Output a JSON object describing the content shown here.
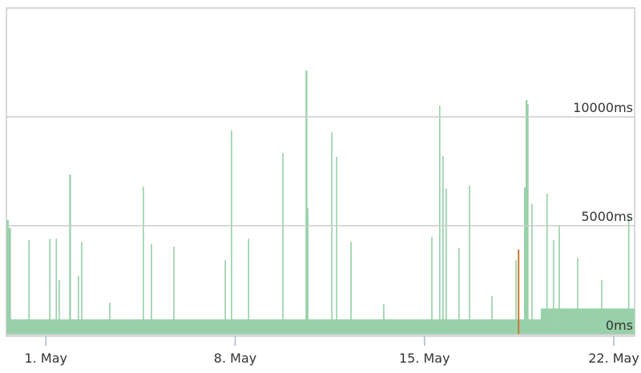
{
  "chart_data": {
    "type": "column-area",
    "color": "#98d1a9",
    "x": [
      -0.45,
      -0.38,
      -0.3,
      0.35,
      0.39,
      1.12,
      1.16,
      1.36,
      1.4,
      1.47,
      1.51,
      1.86,
      1.92,
      2.18,
      2.22,
      2.3,
      2.34,
      3.34,
      3.38,
      4.58,
      4.62,
      4.88,
      4.92,
      5.71,
      5.75,
      7.61,
      7.65,
      7.84,
      7.88,
      8.47,
      8.51,
      9.74,
      9.78,
      10.6,
      10.66,
      10.7,
      11.55,
      11.59,
      11.73,
      11.77,
      12.26,
      12.3,
      13.47,
      13.51,
      15.25,
      15.29,
      15.54,
      15.58,
      15.66,
      15.7,
      15.78,
      15.82,
      16.25,
      16.29,
      16.64,
      16.68,
      17.47,
      17.51,
      18.36,
      18.4,
      18.68,
      18.74,
      18.8,
      18.84,
      18.95,
      18.99,
      19.3,
      19.51,
      19.55,
      19.75,
      19.79,
      19.96,
      20,
      20.64,
      20.68,
      21.53,
      21.57,
      22.53,
      22.57
    ],
    "values": [
      5250,
      4900,
      700,
      4340,
      700,
      4400,
      700,
      4400,
      700,
      2500,
      700,
      7350,
      700,
      2700,
      700,
      4260,
      700,
      1470,
      700,
      6800,
      700,
      4150,
      700,
      4040,
      700,
      3420,
      700,
      9380,
      700,
      4400,
      700,
      8350,
      700,
      12130,
      5800,
      700,
      9300,
      700,
      8160,
      700,
      4260,
      700,
      1400,
      700,
      4490,
      700,
      10510,
      700,
      8200,
      700,
      6700,
      700,
      3970,
      700,
      6840,
      700,
      1760,
      700,
      3420,
      700,
      6760,
      10770,
      10590,
      700,
      6000,
      700,
      1200,
      6470,
      1200,
      4340,
      1200,
      5000,
      1200,
      3530,
      1200,
      2500,
      1200,
      5440,
      1200
    ],
    "highlight": {
      "x": 18.48,
      "value": 3900,
      "color": "#c8772f"
    },
    "xlim": [
      -0.46,
      22.77
    ],
    "xticks": [
      {
        "value": 1,
        "label": "1. May"
      },
      {
        "value": 8,
        "label": "8. May"
      },
      {
        "value": 15,
        "label": "15. May"
      },
      {
        "value": 22,
        "label": "22. May"
      }
    ],
    "ylim": [
      0,
      15000
    ],
    "yticks": [
      {
        "value": 0,
        "label": "0ms"
      },
      {
        "value": 5000,
        "label": "5000ms"
      },
      {
        "value": 10000,
        "label": "10000ms"
      }
    ],
    "grid": true
  }
}
